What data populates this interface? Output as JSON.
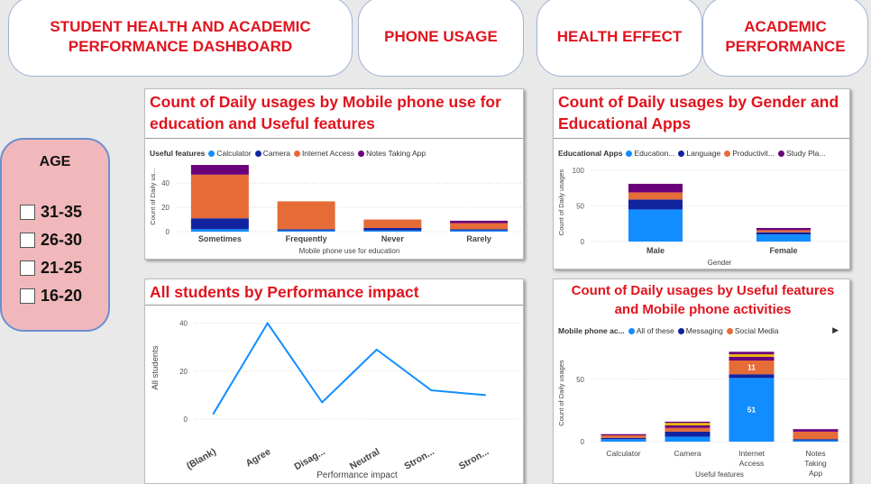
{
  "nav": {
    "dashboard_title": "STUDENT HEALTH AND ACADEMIC PERFORMANCE DASHBOARD",
    "phone_usage": "PHONE USAGE",
    "health_effect": "HEALTH EFFECT",
    "academic_performance": "ACADEMIC PERFORMANCE"
  },
  "age_filter": {
    "title": "AGE",
    "options": [
      "31-35",
      "26-30",
      "21-25",
      "16-20"
    ]
  },
  "colors": {
    "title_red": "#e0141e",
    "blue": "#118dff",
    "navy": "#12239e",
    "orange": "#e66c37",
    "purple": "#6b007b",
    "yellow": "#e8b800"
  },
  "chart_data": [
    {
      "type": "bar",
      "title": "Count of Daily usages by Mobile phone use for education and Useful features",
      "legend_title": "Useful features",
      "xlabel": "Mobile phone use for education",
      "ylabel": "Count of Daily us...",
      "categories": [
        "Sometimes",
        "Frequently",
        "Never",
        "Rarely"
      ],
      "series": [
        {
          "name": "Calculator",
          "values": [
            2,
            1,
            1,
            1
          ]
        },
        {
          "name": "Camera",
          "values": [
            9,
            1,
            2,
            1
          ]
        },
        {
          "name": "Internet Access",
          "values": [
            36,
            23,
            7,
            5
          ]
        },
        {
          "name": "Notes Taking App",
          "values": [
            8,
            0,
            0,
            2
          ]
        }
      ],
      "yticks": [
        0,
        20,
        40
      ],
      "ylim": [
        0,
        58
      ],
      "grid": true
    },
    {
      "type": "bar",
      "title": "Count of Daily usages by Gender and Educational Apps",
      "legend_title": "Educational Apps",
      "xlabel": "Gender",
      "ylabel": "Count of Daily usages",
      "categories": [
        "Male",
        "Female"
      ],
      "series": [
        {
          "name": "Education...",
          "values": [
            45,
            10
          ]
        },
        {
          "name": "Language",
          "values": [
            14,
            3
          ]
        },
        {
          "name": "Productivit...",
          "values": [
            10,
            3
          ]
        },
        {
          "name": "Study Pla...",
          "values": [
            12,
            3
          ]
        }
      ],
      "yticks": [
        0,
        50,
        100
      ],
      "ylim": [
        0,
        110
      ],
      "grid": true
    },
    {
      "type": "line",
      "title": "All students by Performance impact",
      "xlabel": "Performance impact",
      "ylabel": "All students",
      "categories": [
        "(Blank)",
        "Agree",
        "Disag...",
        "Neutral",
        "Stron...",
        "Stron..."
      ],
      "values": [
        2,
        40,
        7,
        29,
        12,
        10
      ],
      "yticks": [
        0,
        20,
        40
      ],
      "ylim": [
        0,
        44
      ],
      "grid": true
    },
    {
      "type": "bar",
      "title": "Count of Daily usages by Useful features and Mobile phone activities",
      "legend_title": "Mobile phone ac...",
      "xlabel": "Useful features",
      "ylabel": "Count of Daily usages",
      "categories": [
        "Calculator",
        "Camera",
        "Internet Access",
        "Notes Taking App"
      ],
      "series": [
        {
          "name": "All of these",
          "values": [
            2,
            4,
            51,
            1
          ]
        },
        {
          "name": "Messaging",
          "values": [
            1,
            4,
            3,
            1
          ]
        },
        {
          "name": "Social Media",
          "values": [
            2,
            3,
            11,
            6
          ]
        },
        {
          "name": "",
          "values": [
            0,
            2,
            3,
            1
          ]
        },
        {
          "name": "",
          "values": [
            0,
            2,
            2,
            0
          ]
        },
        {
          "name": "",
          "values": [
            1,
            1,
            2,
            1
          ]
        }
      ],
      "data_labels": {
        "Internet Access": {
          "All of these": "51",
          "Social Media": "11"
        }
      },
      "yticks": [
        0,
        50
      ],
      "ylim": [
        0,
        78
      ],
      "grid": true
    }
  ]
}
